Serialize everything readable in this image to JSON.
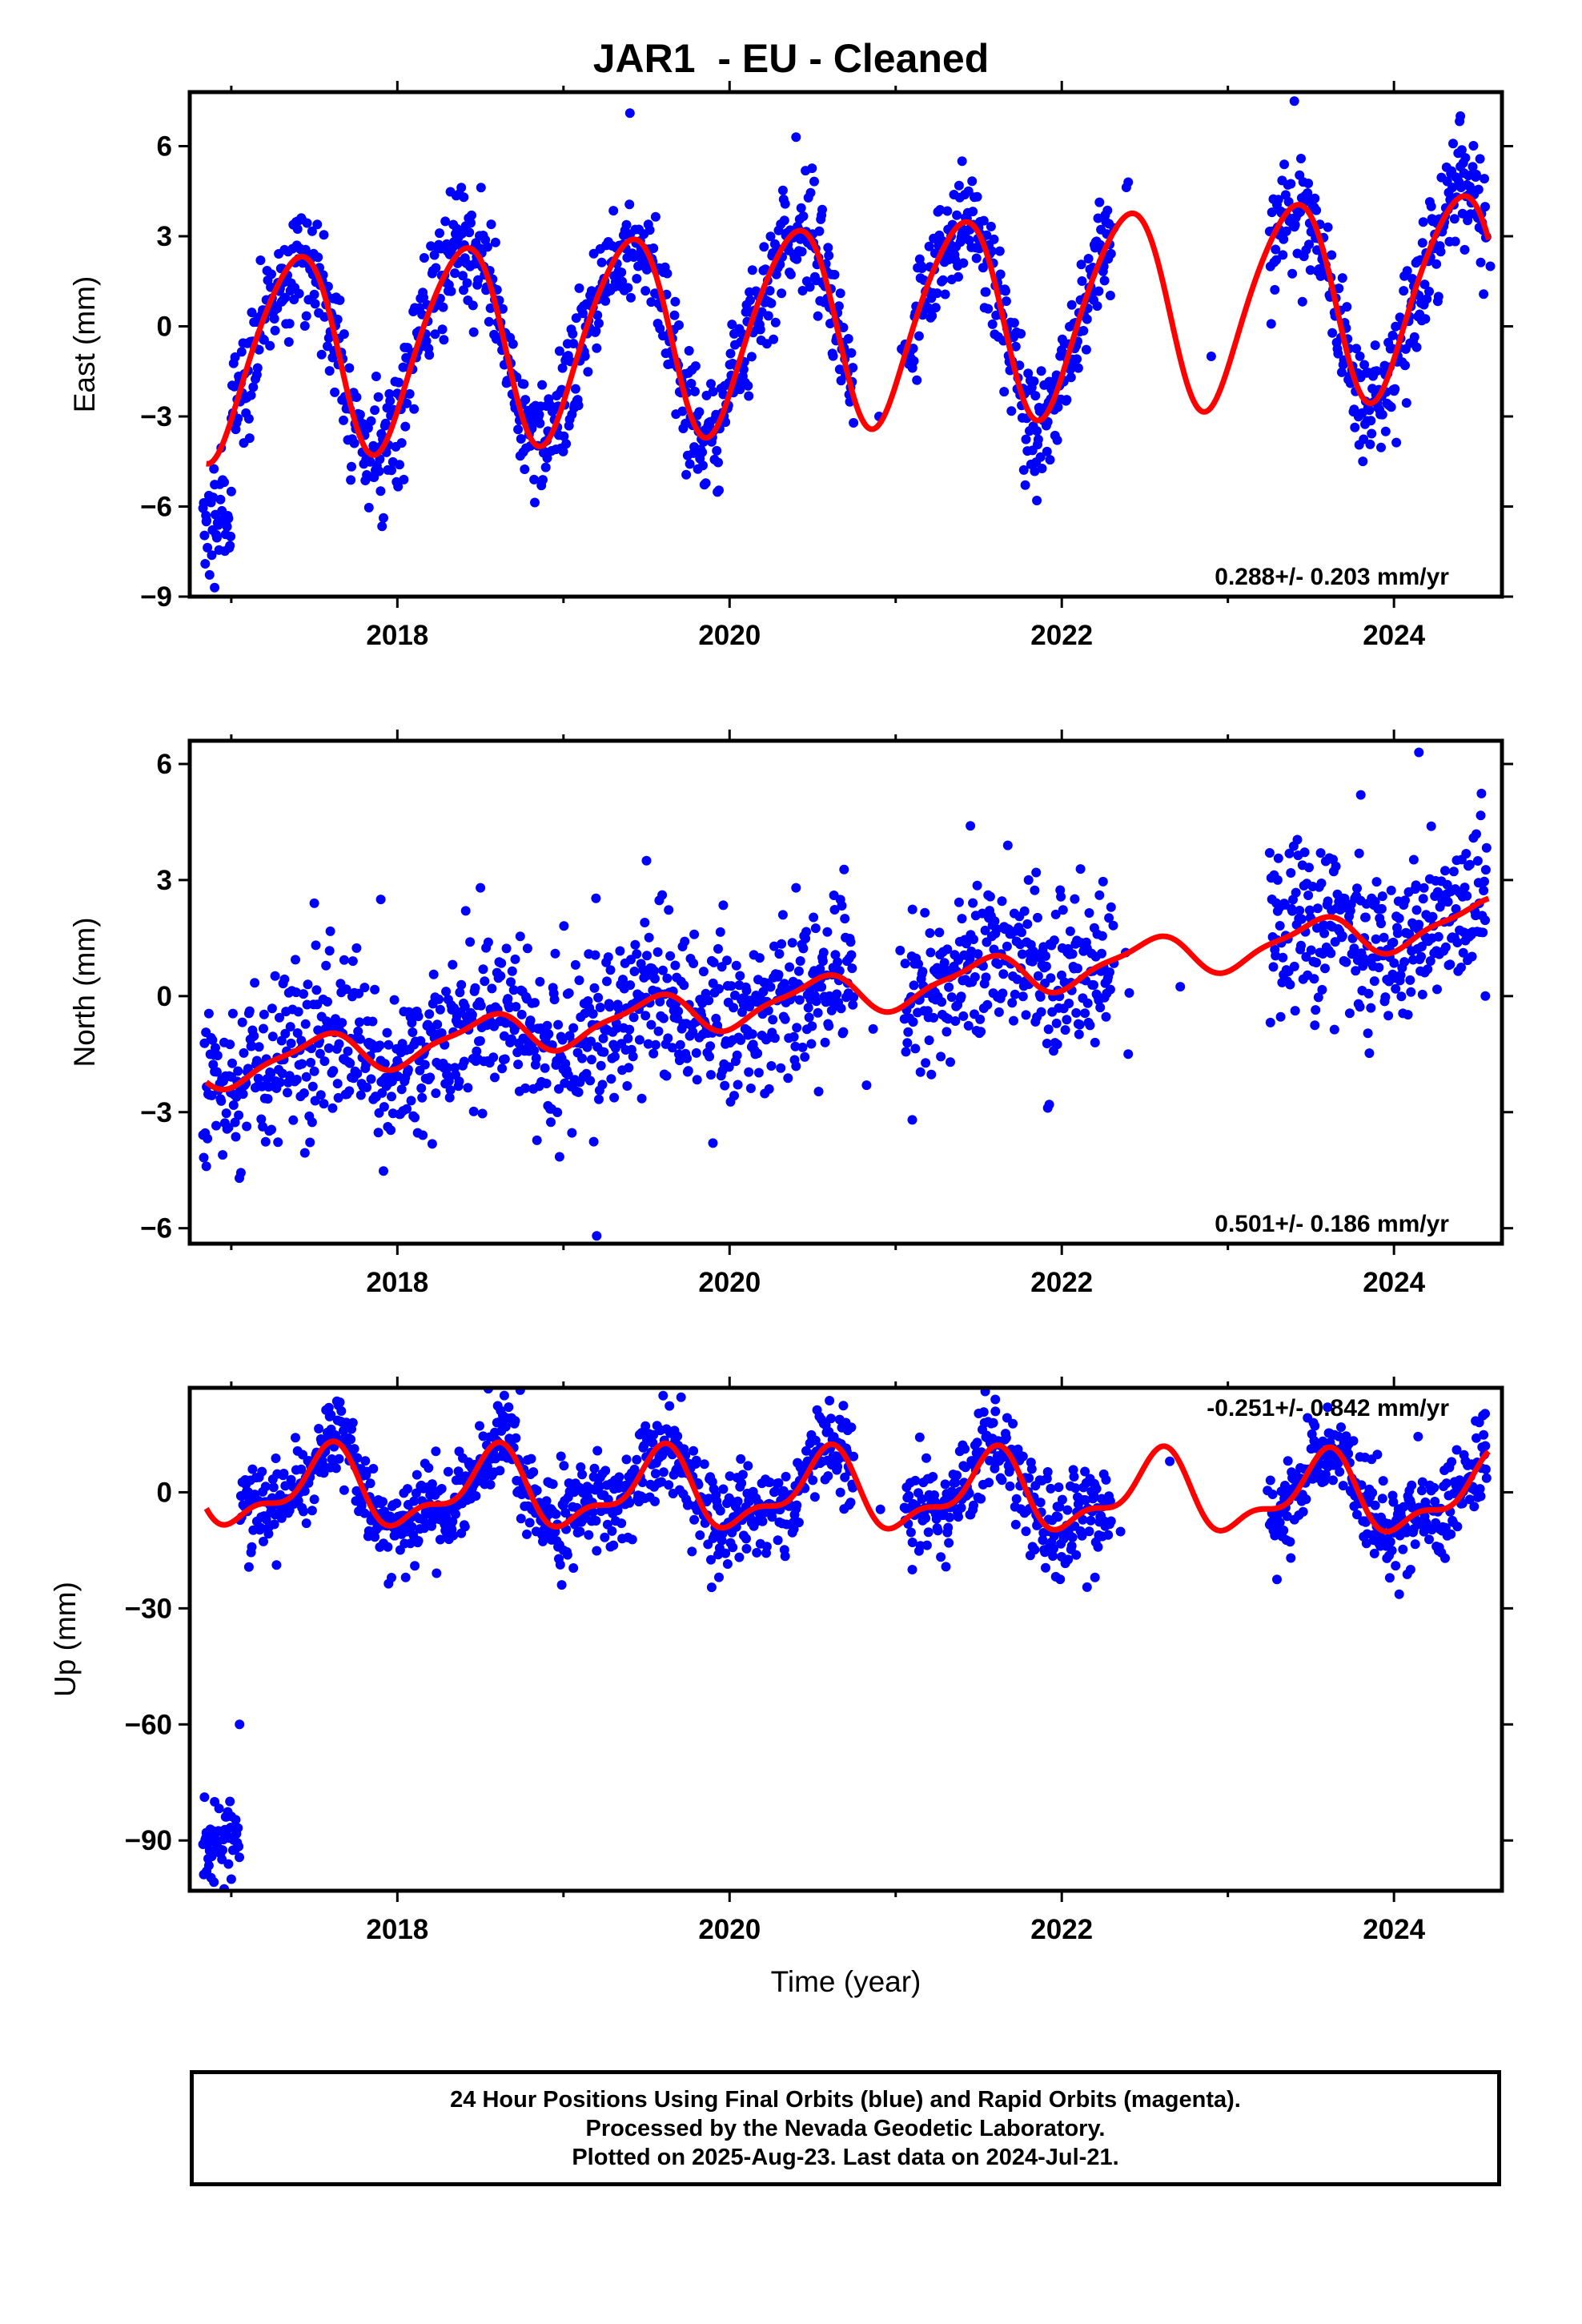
{
  "title": "JAR1  - EU - Cleaned",
  "footer": {
    "line1": "24 Hour Positions Using Final Orbits (blue) and Rapid Orbits (magenta).",
    "line2": "Processed by the Nevada Geodetic Laboratory.",
    "line3": "Plotted on 2025-Aug-23. Last data on 2024-Jul-21."
  },
  "colors": {
    "data_points": "#0000ff",
    "model_fit": "#ff0000",
    "frame": "#000000"
  },
  "chart_data": [
    {
      "type": "scatter",
      "panel": "east",
      "ylabel": "East (mm)",
      "xlabel": "",
      "xlim": [
        2016.75,
        2024.65
      ],
      "ylim": [
        -9,
        7.8
      ],
      "yticks": [
        -9,
        -6,
        -3,
        0,
        3,
        6
      ],
      "xticks": [
        2018,
        2020,
        2022,
        2024
      ],
      "rate_label": "0.288+/- 0.203 mm/yr",
      "grid": false,
      "model": {
        "trend_mm_per_yr": 0.288,
        "offset_at_2020": -0.1,
        "annual_amp": 3.3,
        "annual_phase_days": 140,
        "semiannual_amp": 0.4,
        "semiannual_phase_days": 20
      },
      "series": [
        {
          "values_sample": [
            [
              2016.85,
              -6.5
            ],
            [
              2016.9,
              -8.7
            ],
            [
              2017.0,
              -5.5
            ],
            [
              2017.4,
              3.5
            ],
            [
              2017.9,
              -4.0
            ],
            [
              2018.4,
              4.3
            ],
            [
              2018.9,
              -3.8
            ],
            [
              2019.4,
              7.1
            ],
            [
              2019.9,
              -3.5
            ],
            [
              2020.4,
              6.3
            ],
            [
              2020.9,
              -3.0
            ],
            [
              2021.4,
              5.5
            ],
            [
              2021.85,
              -5.8
            ],
            [
              2022.4,
              4.8
            ],
            [
              2022.9,
              -1.0
            ],
            [
              2023.4,
              7.5
            ],
            [
              2023.95,
              -3.5
            ],
            [
              2024.4,
              7.0
            ],
            [
              2024.58,
              2.0
            ]
          ]
        }
      ]
    },
    {
      "type": "scatter",
      "panel": "north",
      "ylabel": "North (mm)",
      "xlabel": "",
      "xlim": [
        2016.75,
        2024.65
      ],
      "ylim": [
        -6.4,
        6.6
      ],
      "yticks": [
        -6,
        -3,
        0,
        3,
        6
      ],
      "xticks": [
        2018,
        2020,
        2022,
        2024
      ],
      "rate_label": "0.501+/- 0.186 mm/yr",
      "grid": false,
      "model": {
        "trend_mm_per_yr": 0.501,
        "offset_at_2020": -0.3,
        "annual_amp": 0.5,
        "annual_phase_days": 190,
        "semiannual_amp": 0.15,
        "semiannual_phase_days": 60
      },
      "series": [
        {
          "values_sample": [
            [
              2016.85,
              -4.4
            ],
            [
              2017.0,
              -2.5
            ],
            [
              2017.5,
              2.4
            ],
            [
              2017.9,
              2.5
            ],
            [
              2018.5,
              2.8
            ],
            [
              2019.2,
              -6.2
            ],
            [
              2019.5,
              3.5
            ],
            [
              2019.9,
              -3.8
            ],
            [
              2020.4,
              2.8
            ],
            [
              2021.1,
              -3.2
            ],
            [
              2021.45,
              4.4
            ],
            [
              2021.8,
              3.0
            ],
            [
              2022.4,
              -1.5
            ],
            [
              2023.3,
              3.0
            ],
            [
              2023.8,
              5.2
            ],
            [
              2024.15,
              6.3
            ],
            [
              2024.55,
              0.0
            ]
          ]
        }
      ]
    },
    {
      "type": "scatter",
      "panel": "up",
      "ylabel": "Up (mm)",
      "xlabel": "Time (year)",
      "xlim": [
        2016.75,
        2024.65
      ],
      "ylim": [
        -103,
        27
      ],
      "yticks": [
        -90,
        -60,
        -30,
        0
      ],
      "xticks": [
        2018,
        2020,
        2022,
        2024
      ],
      "rate_label": "-0.251+/- 0.842 mm/yr",
      "grid": false,
      "model": {
        "trend_mm_per_yr": -0.251,
        "offset_at_2020": 0,
        "annual_amp": 9,
        "annual_phase_days": 210,
        "semiannual_amp": 4,
        "semiannual_phase_days": 50
      },
      "series": [
        {
          "values_sample": [
            [
              2016.85,
              -88
            ],
            [
              2016.9,
              -80
            ],
            [
              2017.0,
              -100
            ],
            [
              2017.05,
              -60
            ],
            [
              2017.1,
              0
            ],
            [
              2017.6,
              20
            ],
            [
              2018.05,
              -22
            ],
            [
              2018.6,
              18
            ],
            [
              2019.0,
              -15
            ],
            [
              2019.6,
              25
            ],
            [
              2020.1,
              -12
            ],
            [
              2020.7,
              18
            ],
            [
              2021.1,
              -20
            ],
            [
              2021.6,
              24
            ],
            [
              2022.2,
              -22
            ],
            [
              2022.65,
              8
            ],
            [
              2023.3,
              -10
            ],
            [
              2023.6,
              22
            ],
            [
              2024.1,
              -20
            ],
            [
              2024.55,
              12
            ]
          ]
        }
      ]
    }
  ]
}
